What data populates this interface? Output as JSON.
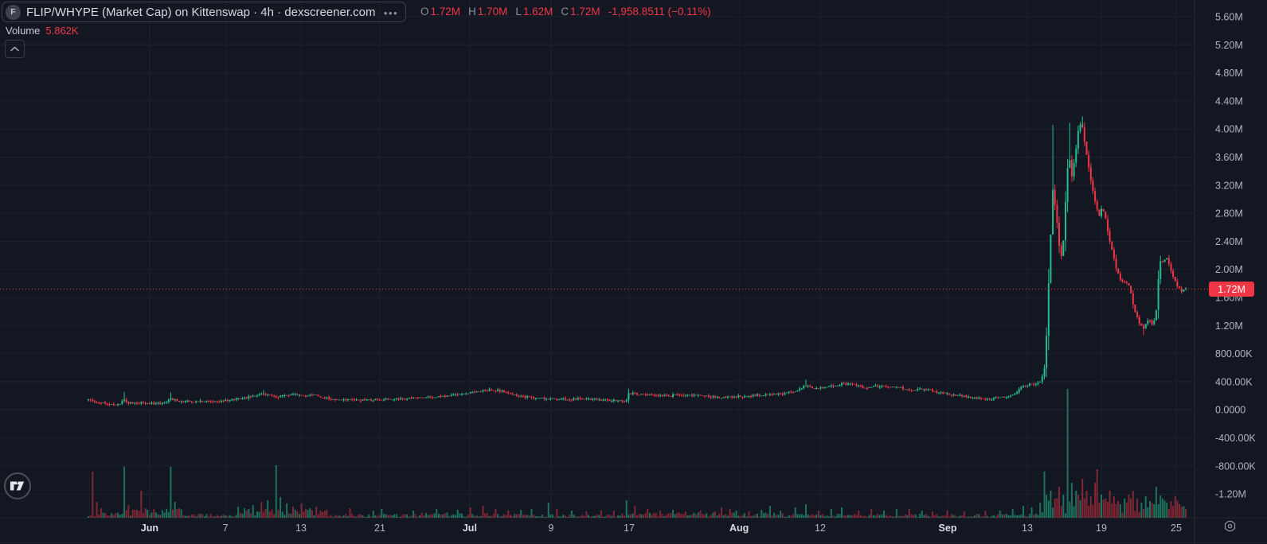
{
  "header": {
    "symbol_icon_letter": "F",
    "title": "FLIP/WHYPE (Market Cap) on Kittenswap · 4h · dexscreener.com",
    "menu_dots": "•••",
    "ohlc": {
      "o_label": "O",
      "o": "1.72M",
      "h_label": "H",
      "h": "1.70M",
      "l_label": "L",
      "l": "1.62M",
      "c_label": "C",
      "c": "1.72M",
      "change": "-1,958.8511 (−0.11%)"
    },
    "volume_label": "Volume",
    "volume_value": "5.862K"
  },
  "colors": {
    "background": "#131722",
    "grid": "#1d2230",
    "up": "#26bd8e",
    "down": "#f23645",
    "volume_up": "rgba(38,189,142,0.55)",
    "volume_down": "rgba(242,54,69,0.5)",
    "axis_text": "#b2b5be",
    "axis_text_major": "#d8dbe3",
    "badge": "#f23645"
  },
  "chart_data": {
    "type": "candlestick",
    "title": "FLIP/WHYPE (Market Cap) on Kittenswap · 4h · dexscreener.com",
    "pair": "FLIP/WHYPE",
    "metric": "Market Cap",
    "exchange": "Kittenswap",
    "interval": "4h",
    "source": "dexscreener.com",
    "last_price": {
      "label": "1.72M",
      "value": 1720000
    },
    "current_bar": {
      "open": 1720000,
      "high": 1700000,
      "low": 1620000,
      "close": 1720000,
      "change": -1958.8511,
      "change_pct": -0.11,
      "volume": 5862
    },
    "y_axis": {
      "title": "Market Cap",
      "ticks": [
        [
          "5.60M",
          5600000
        ],
        [
          "5.20M",
          5200000
        ],
        [
          "4.80M",
          4800000
        ],
        [
          "4.40M",
          4400000
        ],
        [
          "4.00M",
          4000000
        ],
        [
          "3.60M",
          3600000
        ],
        [
          "3.20M",
          3200000
        ],
        [
          "2.80M",
          2800000
        ],
        [
          "2.40M",
          2400000
        ],
        [
          "2.00M",
          2000000
        ],
        [
          "1.60M",
          1600000
        ],
        [
          "1.20M",
          1200000
        ],
        [
          "800.00K",
          800000
        ],
        [
          "400.00K",
          400000
        ],
        [
          "0.0000",
          0
        ],
        [
          "-400.00K",
          -400000
        ],
        [
          "-800.00K",
          -800000
        ],
        [
          "-1.20M",
          -1200000
        ]
      ],
      "range": [
        5600000,
        -1200000
      ]
    },
    "x_axis": {
      "range": "late May – Sep 26",
      "ticks": [
        {
          "label": "Jun",
          "f": 0.1253,
          "major": true
        },
        {
          "label": "7",
          "f": 0.1887,
          "major": false
        },
        {
          "label": "13",
          "f": 0.252,
          "major": false
        },
        {
          "label": "21",
          "f": 0.318,
          "major": false
        },
        {
          "label": "Jul",
          "f": 0.3933,
          "major": true
        },
        {
          "label": "9",
          "f": 0.4613,
          "major": false
        },
        {
          "label": "17",
          "f": 0.5267,
          "major": false
        },
        {
          "label": "Aug",
          "f": 0.6187,
          "major": true
        },
        {
          "label": "12",
          "f": 0.6867,
          "major": false
        },
        {
          "label": "Sep",
          "f": 0.7933,
          "major": true
        },
        {
          "label": "13",
          "f": 0.86,
          "major": false
        },
        {
          "label": "19",
          "f": 0.922,
          "major": false
        },
        {
          "label": "25",
          "f": 0.9847,
          "major": false
        }
      ]
    },
    "price_keypoints": [
      [
        0.0747,
        160000
      ],
      [
        0.08,
        110000
      ],
      [
        0.0933,
        78000
      ],
      [
        0.1013,
        95000
      ],
      [
        0.1033,
        140000
      ],
      [
        0.108,
        95000
      ],
      [
        0.1367,
        90000
      ],
      [
        0.1433,
        155000
      ],
      [
        0.152,
        115000
      ],
      [
        0.1833,
        125000
      ],
      [
        0.2,
        150000
      ],
      [
        0.212,
        195000
      ],
      [
        0.2213,
        225000
      ],
      [
        0.232,
        185000
      ],
      [
        0.2413,
        210000
      ],
      [
        0.248,
        220000
      ],
      [
        0.2553,
        200000
      ],
      [
        0.262,
        225000
      ],
      [
        0.27,
        175000
      ],
      [
        0.28,
        150000
      ],
      [
        0.3,
        135000
      ],
      [
        0.32,
        148000
      ],
      [
        0.34,
        158000
      ],
      [
        0.36,
        182000
      ],
      [
        0.3767,
        200000
      ],
      [
        0.388,
        228000
      ],
      [
        0.4,
        262000
      ],
      [
        0.41,
        285000
      ],
      [
        0.4213,
        268000
      ],
      [
        0.43,
        212000
      ],
      [
        0.44,
        185000
      ],
      [
        0.452,
        162000
      ],
      [
        0.4667,
        150000
      ],
      [
        0.4813,
        155000
      ],
      [
        0.4947,
        148000
      ],
      [
        0.508,
        138000
      ],
      [
        0.52,
        122000
      ],
      [
        0.524,
        105000
      ],
      [
        0.526,
        235000
      ],
      [
        0.532,
        228000
      ],
      [
        0.5413,
        215000
      ],
      [
        0.552,
        202000
      ],
      [
        0.562,
        196000
      ],
      [
        0.5653,
        224000
      ],
      [
        0.5747,
        212000
      ],
      [
        0.5867,
        198000
      ],
      [
        0.5973,
        184000
      ],
      [
        0.604,
        174000
      ],
      [
        0.6107,
        184000
      ],
      [
        0.6173,
        190000
      ],
      [
        0.6267,
        196000
      ],
      [
        0.6367,
        210000
      ],
      [
        0.6453,
        228000
      ],
      [
        0.656,
        224000
      ],
      [
        0.6667,
        278000
      ],
      [
        0.6747,
        348000
      ],
      [
        0.6827,
        300000
      ],
      [
        0.6933,
        328000
      ],
      [
        0.7033,
        365000
      ],
      [
        0.7107,
        372000
      ],
      [
        0.72,
        338000
      ],
      [
        0.726,
        308000
      ],
      [
        0.7313,
        342000
      ],
      [
        0.7427,
        330000
      ],
      [
        0.7533,
        322000
      ],
      [
        0.7627,
        268000
      ],
      [
        0.77,
        298000
      ],
      [
        0.78,
        278000
      ],
      [
        0.7873,
        238000
      ],
      [
        0.8,
        208000
      ],
      [
        0.8133,
        170000
      ],
      [
        0.824,
        148000
      ],
      [
        0.8367,
        172000
      ],
      [
        0.8467,
        198000
      ],
      [
        0.856,
        325000
      ],
      [
        0.8627,
        378000
      ],
      [
        0.8667,
        358000
      ],
      [
        0.8707,
        392000
      ],
      [
        0.874,
        520000
      ],
      [
        0.876,
        1020000
      ],
      [
        0.8787,
        2150000
      ],
      [
        0.8813,
        3150000
      ],
      [
        0.884,
        2820000
      ],
      [
        0.8867,
        2340000
      ],
      [
        0.8893,
        2120000
      ],
      [
        0.892,
        2980000
      ],
      [
        0.8947,
        3680000
      ],
      [
        0.8973,
        3320000
      ],
      [
        0.9,
        3620000
      ],
      [
        0.9027,
        3980000
      ],
      [
        0.9053,
        4100000
      ],
      [
        0.908,
        3820000
      ],
      [
        0.9107,
        3520000
      ],
      [
        0.9133,
        3260000
      ],
      [
        0.9167,
        2960000
      ],
      [
        0.92,
        2760000
      ],
      [
        0.9227,
        2900000
      ],
      [
        0.9253,
        2740000
      ],
      [
        0.928,
        2460000
      ],
      [
        0.932,
        2200000
      ],
      [
        0.9353,
        1960000
      ],
      [
        0.9387,
        1830000
      ],
      [
        0.9427,
        1810000
      ],
      [
        0.9453,
        1760000
      ],
      [
        0.9493,
        1450000
      ],
      [
        0.9533,
        1250000
      ],
      [
        0.9573,
        1160000
      ],
      [
        0.9613,
        1290000
      ],
      [
        0.9653,
        1210000
      ],
      [
        0.968,
        1420000
      ],
      [
        0.9707,
        2100000
      ],
      [
        0.974,
        2120000
      ],
      [
        0.9773,
        2160000
      ],
      [
        0.98,
        2000000
      ],
      [
        0.9827,
        1860000
      ],
      [
        0.9853,
        1780000
      ],
      [
        0.9887,
        1690000
      ],
      [
        0.992,
        1720000
      ]
    ],
    "wick_highs": [
      [
        0.1033,
        255000,
        "g"
      ],
      [
        0.1433,
        248000,
        "g"
      ],
      [
        0.2213,
        280000,
        "g"
      ],
      [
        0.526,
        300000,
        "g"
      ],
      [
        0.6747,
        430000,
        "g"
      ],
      [
        0.8813,
        4060000,
        "g"
      ],
      [
        0.8947,
        4090000,
        "g"
      ],
      [
        0.9053,
        4180000,
        "g"
      ]
    ],
    "wick_lows": [
      [
        0.9573,
        1060000,
        "r"
      ]
    ],
    "volume_base_regions": [
      [
        0.073,
        0.1,
        4
      ],
      [
        0.1,
        0.155,
        7
      ],
      [
        0.155,
        0.2,
        3
      ],
      [
        0.2,
        0.275,
        7
      ],
      [
        0.275,
        0.35,
        3
      ],
      [
        0.35,
        0.44,
        4
      ],
      [
        0.44,
        0.52,
        2.5
      ],
      [
        0.52,
        0.6,
        4
      ],
      [
        0.6,
        0.67,
        4
      ],
      [
        0.67,
        0.77,
        3
      ],
      [
        0.77,
        0.862,
        3
      ],
      [
        0.862,
        0.8733,
        9
      ],
      [
        0.8733,
        0.9933,
        15
      ]
    ],
    "volume_spikes": [
      [
        0.078,
        58,
        "r"
      ],
      [
        0.0807,
        20,
        "r"
      ],
      [
        0.084,
        12,
        "r"
      ],
      [
        0.104,
        64,
        "g"
      ],
      [
        0.1067,
        16,
        "r"
      ],
      [
        0.112,
        10,
        "r"
      ],
      [
        0.118,
        34,
        "r"
      ],
      [
        0.122,
        12,
        "r"
      ],
      [
        0.1433,
        64,
        "g"
      ],
      [
        0.1467,
        20,
        "g"
      ],
      [
        0.1507,
        12,
        "r"
      ],
      [
        0.2,
        14,
        "g"
      ],
      [
        0.2053,
        12,
        "g"
      ],
      [
        0.212,
        16,
        "g"
      ],
      [
        0.218,
        20,
        "r"
      ],
      [
        0.2233,
        22,
        "g"
      ],
      [
        0.232,
        66,
        "g"
      ],
      [
        0.2353,
        26,
        "g"
      ],
      [
        0.24,
        18,
        "g"
      ],
      [
        0.2453,
        14,
        "r"
      ],
      [
        0.252,
        18,
        "r"
      ],
      [
        0.2587,
        12,
        "g"
      ],
      [
        0.2653,
        14,
        "r"
      ],
      [
        0.2733,
        10,
        "r"
      ],
      [
        0.2933,
        12,
        "r"
      ],
      [
        0.312,
        9,
        "g"
      ],
      [
        0.32,
        11,
        "g"
      ],
      [
        0.3467,
        9,
        "g"
      ],
      [
        0.3653,
        11,
        "g"
      ],
      [
        0.3833,
        10,
        "g"
      ],
      [
        0.3933,
        13,
        "r"
      ],
      [
        0.4047,
        15,
        "r"
      ],
      [
        0.4147,
        11,
        "r"
      ],
      [
        0.4253,
        9,
        "r"
      ],
      [
        0.4367,
        10,
        "g"
      ],
      [
        0.4453,
        11,
        "g"
      ],
      [
        0.46,
        19,
        "g"
      ],
      [
        0.4667,
        11,
        "r"
      ],
      [
        0.4787,
        9,
        "g"
      ],
      [
        0.4907,
        8,
        "r"
      ],
      [
        0.5033,
        9,
        "r"
      ],
      [
        0.5147,
        9,
        "r"
      ],
      [
        0.5253,
        22,
        "g"
      ],
      [
        0.5313,
        15,
        "r"
      ],
      [
        0.5413,
        11,
        "r"
      ],
      [
        0.552,
        9,
        "r"
      ],
      [
        0.5633,
        10,
        "g"
      ],
      [
        0.5747,
        8,
        "r"
      ],
      [
        0.5867,
        9,
        "r"
      ],
      [
        0.5987,
        8,
        "r"
      ],
      [
        0.6047,
        13,
        "r"
      ],
      [
        0.6107,
        11,
        "r"
      ],
      [
        0.6167,
        9,
        "g"
      ],
      [
        0.6267,
        8,
        "r"
      ],
      [
        0.6367,
        10,
        "g"
      ],
      [
        0.6453,
        15,
        "g"
      ],
      [
        0.6533,
        9,
        "g"
      ],
      [
        0.6667,
        13,
        "g"
      ],
      [
        0.6753,
        17,
        "g"
      ],
      [
        0.6853,
        9,
        "r"
      ],
      [
        0.6953,
        11,
        "g"
      ],
      [
        0.7053,
        13,
        "g"
      ],
      [
        0.7187,
        9,
        "r"
      ],
      [
        0.7287,
        11,
        "r"
      ],
      [
        0.74,
        9,
        "g"
      ],
      [
        0.7507,
        11,
        "g"
      ],
      [
        0.7613,
        11,
        "r"
      ],
      [
        0.7713,
        9,
        "g"
      ],
      [
        0.7813,
        8,
        "r"
      ],
      [
        0.7933,
        9,
        "r"
      ],
      [
        0.808,
        8,
        "r"
      ],
      [
        0.824,
        9,
        "r"
      ],
      [
        0.8373,
        9,
        "g"
      ],
      [
        0.848,
        11,
        "g"
      ],
      [
        0.856,
        15,
        "g"
      ],
      [
        0.8633,
        13,
        "g"
      ],
      [
        0.87,
        19,
        "g"
      ],
      [
        0.874,
        58,
        "g"
      ],
      [
        0.8767,
        29,
        "g"
      ],
      [
        0.88,
        34,
        "g"
      ],
      [
        0.8833,
        24,
        "r"
      ],
      [
        0.8867,
        39,
        "r"
      ],
      [
        0.89,
        29,
        "g"
      ],
      [
        0.8933,
        162,
        "g"
      ],
      [
        0.8967,
        44,
        "g"
      ],
      [
        0.9,
        34,
        "g"
      ],
      [
        0.9033,
        29,
        "r"
      ],
      [
        0.9067,
        49,
        "r"
      ],
      [
        0.91,
        34,
        "r"
      ],
      [
        0.9133,
        27,
        "r"
      ],
      [
        0.9167,
        44,
        "r"
      ],
      [
        0.9187,
        61,
        "r"
      ],
      [
        0.922,
        29,
        "g"
      ],
      [
        0.9253,
        24,
        "r"
      ],
      [
        0.9287,
        34,
        "r"
      ],
      [
        0.932,
        27,
        "r"
      ],
      [
        0.9353,
        21,
        "r"
      ],
      [
        0.9387,
        17,
        "g"
      ],
      [
        0.942,
        24,
        "g"
      ],
      [
        0.9453,
        29,
        "r"
      ],
      [
        0.9487,
        34,
        "r"
      ],
      [
        0.952,
        24,
        "r"
      ],
      [
        0.9553,
        19,
        "g"
      ],
      [
        0.9587,
        27,
        "g"
      ],
      [
        0.962,
        21,
        "g"
      ],
      [
        0.9653,
        17,
        "g"
      ],
      [
        0.9687,
        39,
        "g"
      ],
      [
        0.9707,
        28,
        "g"
      ],
      [
        0.974,
        24,
        "g"
      ],
      [
        0.9773,
        19,
        "g"
      ],
      [
        0.98,
        21,
        "r"
      ],
      [
        0.9833,
        27,
        "r"
      ],
      [
        0.9867,
        17,
        "r"
      ],
      [
        0.99,
        14,
        "r"
      ],
      [
        0.9927,
        11,
        "r"
      ]
    ]
  }
}
